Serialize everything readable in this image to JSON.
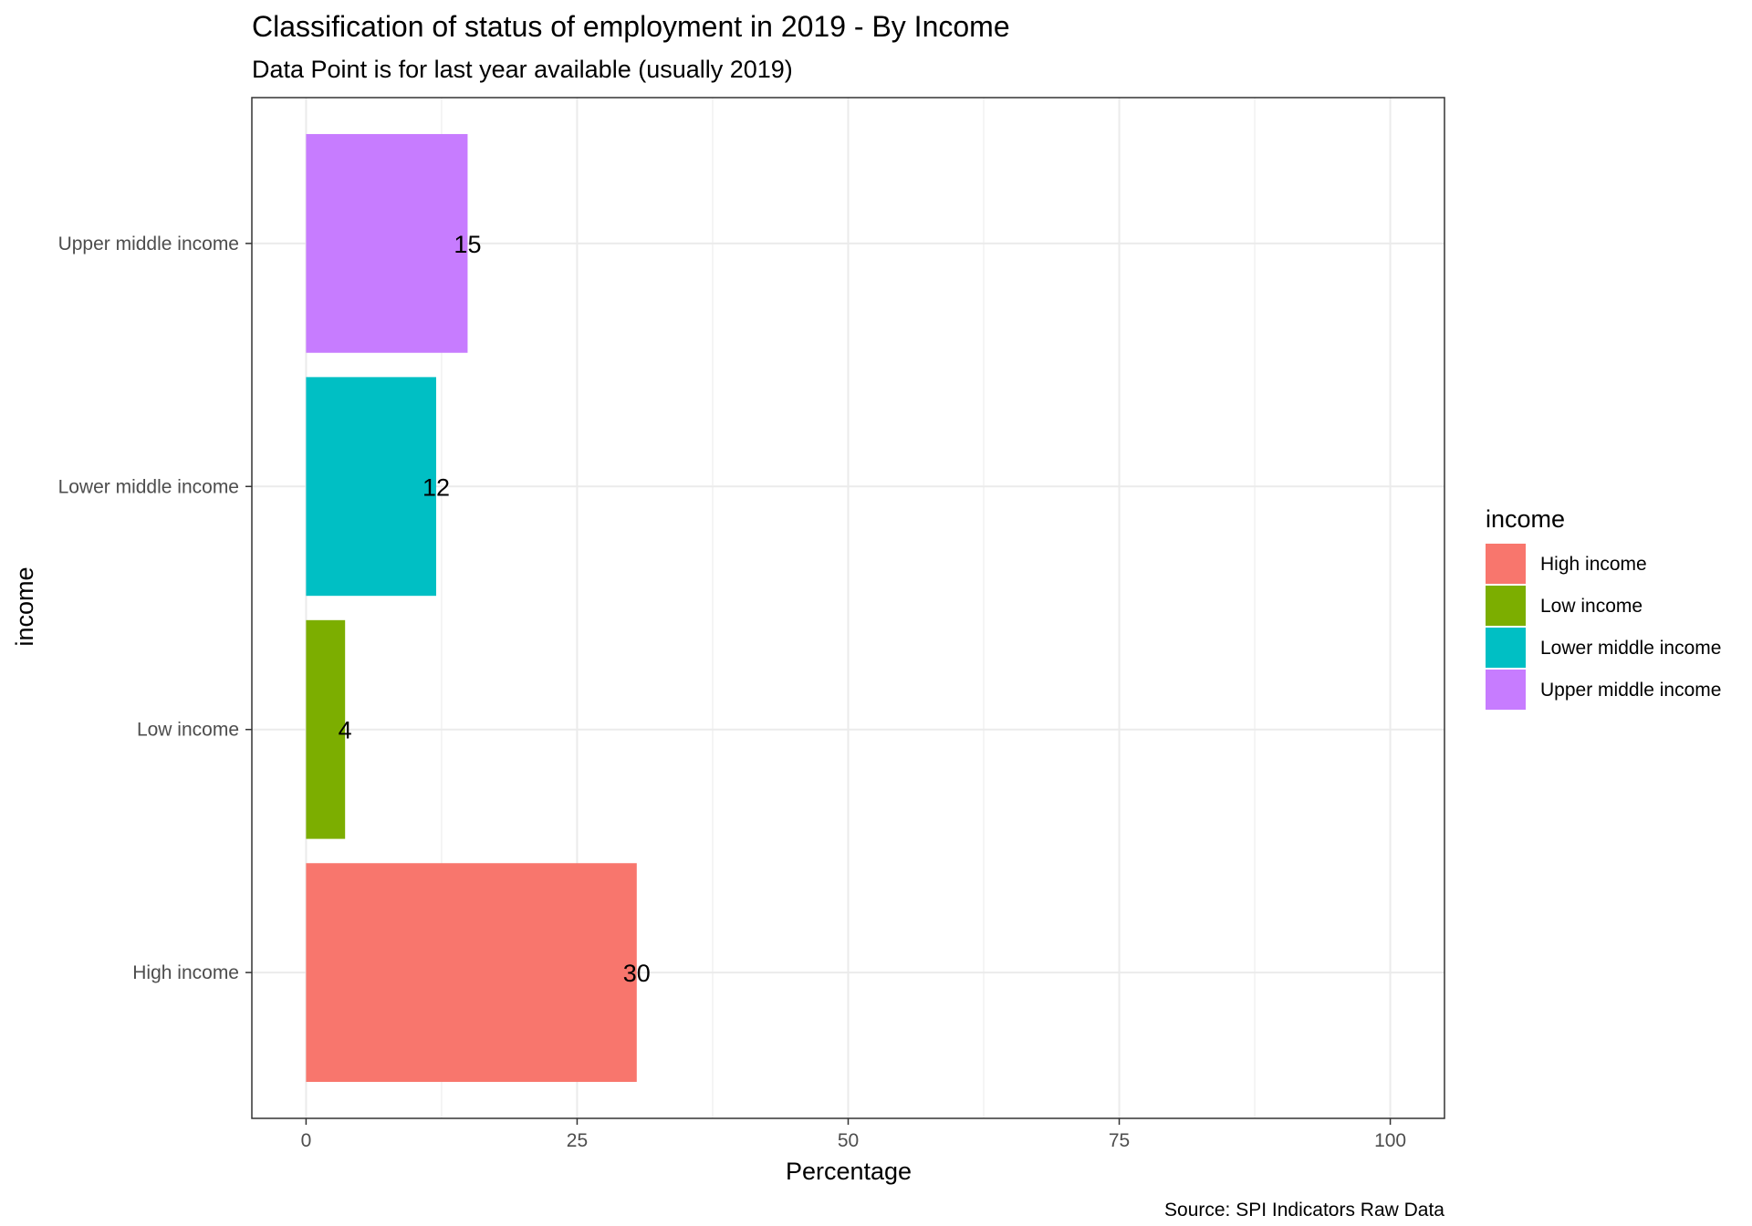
{
  "chart_data": {
    "type": "bar",
    "orientation": "horizontal",
    "title": "Classification of status of employment in 2019 - By Income",
    "subtitle": "Data Point is for last year available (usually 2019)",
    "xlabel": "Percentage",
    "ylabel": "income",
    "xlim": [
      0,
      100
    ],
    "x_ticks": [
      0,
      25,
      50,
      75,
      100
    ],
    "categories": [
      "High income",
      "Low income",
      "Lower middle income",
      "Upper middle income"
    ],
    "values": [
      30.5,
      3.6,
      12.0,
      14.9
    ],
    "data_labels": [
      "30",
      "4",
      "12",
      "15"
    ],
    "colors": [
      "#F8766D",
      "#7CAE00",
      "#00BFC4",
      "#C77CFF"
    ],
    "grid": true,
    "legend": {
      "title": "income",
      "position": "right",
      "entries": [
        "High income",
        "Low income",
        "Lower middle income",
        "Upper middle income"
      ]
    },
    "caption": "Source: SPI Indicators Raw Data"
  }
}
